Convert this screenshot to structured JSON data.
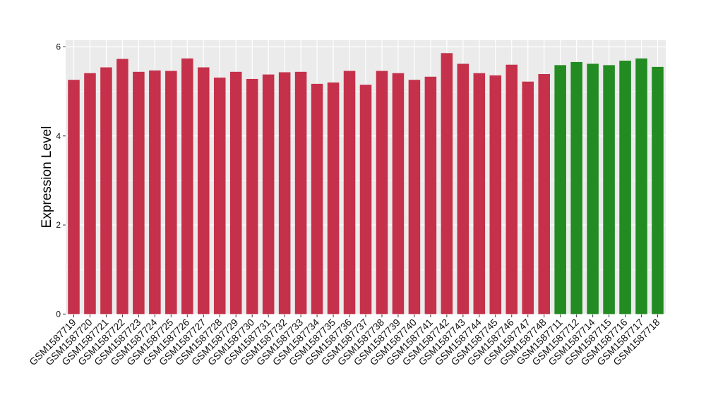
{
  "chart_data": {
    "type": "bar",
    "title": "",
    "xlabel": "",
    "ylabel": "Expression Level",
    "ylim": [
      -0.01,
      6.15
    ],
    "yticks": [
      0,
      2,
      4,
      6
    ],
    "grid": true,
    "legend": "none",
    "background_color": "#ebebeb",
    "gridline_color": "#ffffff",
    "categories": [
      "GSM1587719",
      "GSM1587720",
      "GSM1587721",
      "GSM1587722",
      "GSM1587723",
      "GSM1587724",
      "GSM1587725",
      "GSM1587726",
      "GSM1587727",
      "GSM1587728",
      "GSM1587729",
      "GSM1587730",
      "GSM1587731",
      "GSM1587732",
      "GSM1587733",
      "GSM1587734",
      "GSM1587735",
      "GSM1587736",
      "GSM1587737",
      "GSM1587738",
      "GSM1587739",
      "GSM1587740",
      "GSM1587741",
      "GSM1587742",
      "GSM1587743",
      "GSM1587744",
      "GSM1587745",
      "GSM1587746",
      "GSM1587747",
      "GSM1587748",
      "GSM1587711",
      "GSM1587712",
      "GSM1587714",
      "GSM1587715",
      "GSM1587716",
      "GSM1587717",
      "GSM1587718"
    ],
    "values": [
      5.26,
      5.41,
      5.54,
      5.73,
      5.44,
      5.47,
      5.46,
      5.74,
      5.54,
      5.31,
      5.44,
      5.28,
      5.38,
      5.43,
      5.44,
      5.17,
      5.2,
      5.46,
      5.15,
      5.46,
      5.41,
      5.26,
      5.33,
      5.86,
      5.62,
      5.41,
      5.36,
      5.6,
      5.22,
      5.39,
      5.59,
      5.66,
      5.62,
      5.59,
      5.69,
      5.74,
      5.55
    ],
    "groups": [
      "red",
      "red",
      "red",
      "red",
      "red",
      "red",
      "red",
      "red",
      "red",
      "red",
      "red",
      "red",
      "red",
      "red",
      "red",
      "red",
      "red",
      "red",
      "red",
      "red",
      "red",
      "red",
      "red",
      "red",
      "red",
      "red",
      "red",
      "red",
      "red",
      "red",
      "green",
      "green",
      "green",
      "green",
      "green",
      "green",
      "green"
    ],
    "colors": {
      "red": "#c5314a",
      "green": "#228b22"
    }
  }
}
